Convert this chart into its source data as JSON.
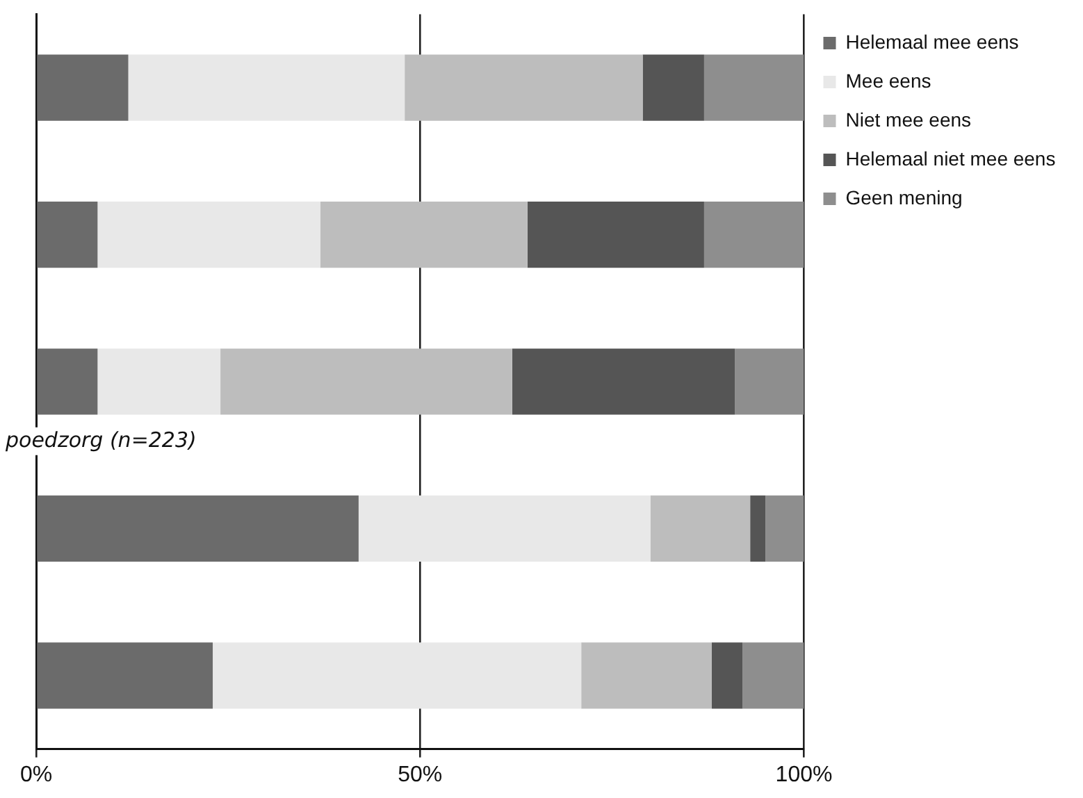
{
  "chart_data": {
    "type": "bar",
    "orientation": "horizontal",
    "stacked": true,
    "categories": [
      null,
      null,
      null,
      null,
      null
    ],
    "series": [
      {
        "name": "Helemaal mee eens",
        "color": "#6b6b6b",
        "values": [
          12,
          8,
          8,
          42,
          23
        ]
      },
      {
        "name": "Mee eens",
        "color": "#e8e8e8",
        "values": [
          36,
          29,
          16,
          38,
          48
        ]
      },
      {
        "name": "Niet mee eens",
        "color": "#bdbdbd",
        "values": [
          31,
          27,
          38,
          13,
          17
        ]
      },
      {
        "name": "Helemaal niet mee eens",
        "color": "#555555",
        "values": [
          8,
          23,
          29,
          2,
          4
        ]
      },
      {
        "name": "Geen mening",
        "color": "#8e8e8e",
        "values": [
          13,
          13,
          9,
          5,
          8
        ]
      }
    ],
    "xlim": [
      0,
      100
    ],
    "xticks": [
      {
        "value": 0,
        "label": "0%"
      },
      {
        "value": 50,
        "label": "50%"
      },
      {
        "value": 100,
        "label": "100%"
      }
    ],
    "grid": "x",
    "legend": "top right",
    "annotations": [
      "poedzorg (n=223)"
    ]
  }
}
